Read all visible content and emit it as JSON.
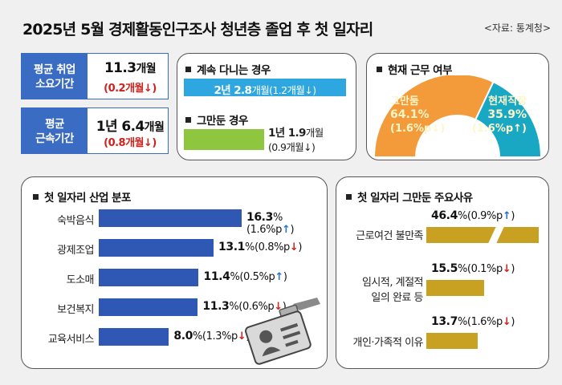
{
  "title": "2025년 5월 경제활동인구조사 청년층 졸업 후 첫 일자리",
  "source": "<자료: 통계청>",
  "stats": [
    {
      "label_lines": [
        "평균 취업",
        "소요기간"
      ],
      "value_num": "11.3",
      "value_unit": "개월",
      "change": "(0.2개월↓)"
    },
    {
      "label_lines": [
        "평균",
        "근속기간"
      ],
      "value_num": "1년 6.4",
      "value_unit": "개월",
      "change": "(0.8개월↓)"
    }
  ],
  "tenure": {
    "continuing": {
      "title": "계속 다니는 경우",
      "value_main": "2년 2.8",
      "value_rest": "개월(1.2개월↓)",
      "bar_color": "#2ea7e0"
    },
    "quit": {
      "title": "그만둔 경우",
      "value_main": "1년 1.9",
      "value_rest": "개월",
      "change": "(0.9개월↓)",
      "bar_color": "#8ec63f"
    }
  },
  "status": {
    "title": "현재 근무 여부",
    "quit": {
      "label": "그만둠",
      "pct": "64.1%",
      "change": "(1.6%p↓)",
      "color": "#f39a3a"
    },
    "current": {
      "label": "현재직장",
      "pct": "35.9%",
      "change": "(1.6%p↑)",
      "color": "#18a8c4"
    }
  },
  "industry_title": "첫 일자리 산업 분포",
  "reasons_title": "첫 일자리 그만둔 주요사유",
  "chart_data": [
    {
      "type": "pie",
      "title": "현재 근무 여부",
      "categories": [
        "그만둠",
        "현재직장"
      ],
      "values": [
        64.1,
        35.9
      ],
      "changes": [
        "(1.6%p↓)",
        "(1.6%p↑)"
      ],
      "colors": [
        "#f39a3a",
        "#18a8c4"
      ]
    },
    {
      "type": "bar",
      "title": "첫 일자리 산업 분포",
      "categories": [
        "숙박음식",
        "광제조업",
        "도소매",
        "보건복지",
        "교육서비스"
      ],
      "values": [
        16.3,
        13.1,
        11.4,
        11.3,
        8.0
      ],
      "value_labels": [
        "16.3",
        "13.1",
        "11.4",
        "11.3",
        "8.0"
      ],
      "changes": [
        "(1.6%p↑)",
        "(0.8%p↓)",
        "(0.5%p↑)",
        "(0.6%p↓)",
        "(1.3%p↓)"
      ],
      "directions": [
        "up",
        "down",
        "up",
        "down",
        "down"
      ],
      "color": "#2f58b4"
    },
    {
      "type": "bar",
      "title": "첫 일자리 그만둔 주요사유",
      "categories": [
        "근로여건 불만족",
        "임시적, 계절적 일의 완료 등",
        "개인·가족적 이유"
      ],
      "category_lines": [
        [
          "근로여건 불만족"
        ],
        [
          "임시적, 계절적",
          "일의 완료 등"
        ],
        [
          "개인·가족적 이유"
        ]
      ],
      "values": [
        46.4,
        15.5,
        13.7
      ],
      "value_labels": [
        "46.4",
        "15.5",
        "13.7"
      ],
      "changes": [
        "(0.9%p↑)",
        "(0.1%p↓)",
        "(1.6%p↓)"
      ],
      "directions": [
        "up",
        "down",
        "down"
      ],
      "color": "#c9a122"
    }
  ]
}
